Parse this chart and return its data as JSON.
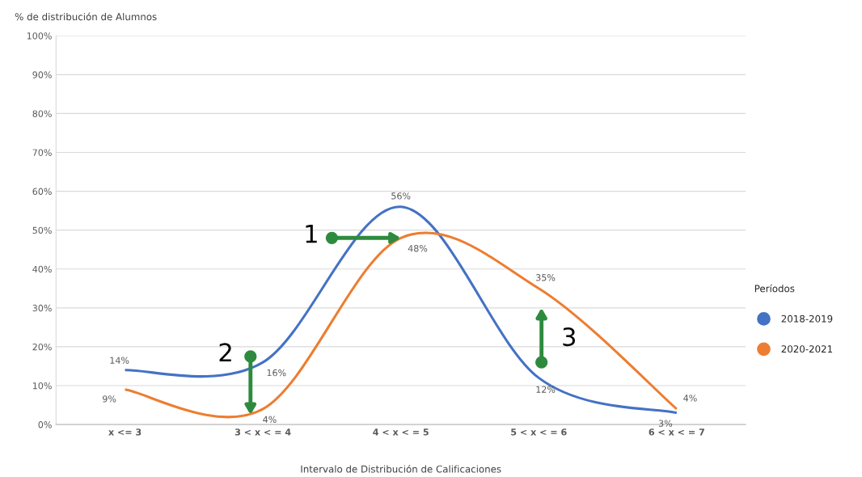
{
  "chart_data": {
    "type": "line",
    "ylabel": "% de distribución de Alumnos",
    "xlabel": "Intervalo de Distribución de Calificaciones",
    "legend_title": "Períodos",
    "categories": [
      "x <= 3",
      "3 < x < = 4",
      "4 < x < = 5",
      "5 < x < = 6",
      "6 < x < = 7"
    ],
    "series": [
      {
        "name": "2018-2019",
        "color": "#4472c4",
        "values": [
          14,
          16,
          56,
          12,
          3
        ],
        "value_labels": [
          "14%",
          "16%",
          "56%",
          "12%",
          "3%"
        ]
      },
      {
        "name": "2020-2021",
        "color": "#ed7d31",
        "values": [
          9,
          4,
          48,
          35,
          4
        ],
        "value_labels": [
          "9%",
          "4%",
          "48%",
          "35%",
          "4%"
        ]
      }
    ],
    "ylim": [
      0,
      100
    ],
    "yticks": [
      {
        "value": 0,
        "label": "0%"
      },
      {
        "value": 10,
        "label": "10%"
      },
      {
        "value": 20,
        "label": "20%"
      },
      {
        "value": 30,
        "label": "30%"
      },
      {
        "value": 40,
        "label": "40%"
      },
      {
        "value": 50,
        "label": "50%"
      },
      {
        "value": 60,
        "label": "60%"
      },
      {
        "value": 70,
        "label": "70%"
      },
      {
        "value": 80,
        "label": "80%"
      },
      {
        "value": 90,
        "label": "90%"
      },
      {
        "value": 100,
        "label": "100%"
      }
    ],
    "grid": "y",
    "legend": "right",
    "marker": "none",
    "line_style": "solid",
    "annotations": [
      {
        "text": "1",
        "x": "4 < x < = 5",
        "y": 48
      },
      {
        "text": "2",
        "y": 2.5
      },
      {
        "text": "3",
        "y": 30
      }
    ]
  }
}
